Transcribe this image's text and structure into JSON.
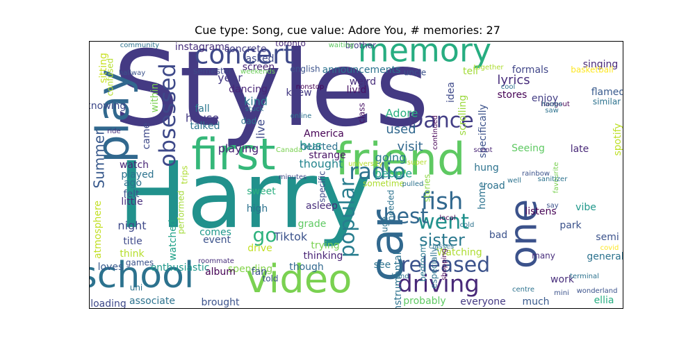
{
  "chart_data": {
    "type": "wordcloud",
    "title": "Cue type: Song, cue value: Adore You, # memories: 27",
    "words": [
      {
        "text": "Styles",
        "color": "#443a83"
      },
      {
        "text": "Harry",
        "color": "#21918c"
      },
      {
        "text": "friend",
        "color": "#5ec962"
      },
      {
        "text": "first",
        "color": "#35b779"
      },
      {
        "text": "video",
        "color": "#7ad151"
      },
      {
        "text": "school",
        "color": "#2c728e"
      },
      {
        "text": "one",
        "color": "#3b528b"
      },
      {
        "text": "car",
        "color": "#31688e"
      },
      {
        "text": "play",
        "color": "#31688e"
      },
      {
        "text": "memory",
        "color": "#27ad81"
      },
      {
        "text": "concert",
        "color": "#3e4989"
      },
      {
        "text": "driving",
        "color": "#482878"
      },
      {
        "text": "released",
        "color": "#3b528b"
      },
      {
        "text": "fish",
        "color": "#31688e"
      },
      {
        "text": "obsessed",
        "color": "#3e4989"
      },
      {
        "text": "radio",
        "color": "#2c728e"
      },
      {
        "text": "Dance",
        "color": "#433e85"
      },
      {
        "text": "went",
        "color": "#21918c"
      },
      {
        "text": "popular",
        "color": "#287d8e"
      },
      {
        "text": "best",
        "color": "#31688e"
      },
      {
        "text": "sister",
        "color": "#2a788e"
      },
      {
        "text": "go",
        "color": "#2db27d"
      },
      {
        "text": "Summer",
        "color": "#38598c"
      },
      {
        "text": "lyrics",
        "color": "#472d7b"
      },
      {
        "text": "Watching",
        "color": "#addc30"
      },
      {
        "text": "Tiktok",
        "color": "#3b528b"
      },
      {
        "text": "night",
        "color": "#3e4989"
      },
      {
        "text": "year",
        "color": "#443983"
      },
      {
        "text": "kind",
        "color": "#2a788e"
      },
      {
        "text": "bus",
        "color": "#1f988b"
      },
      {
        "text": "used",
        "color": "#31688e"
      },
      {
        "text": "visit",
        "color": "#31688e"
      },
      {
        "text": "Adore",
        "color": "#29af7f"
      },
      {
        "text": "thought",
        "color": "#25858e"
      },
      {
        "text": "going",
        "color": "#2a788e"
      },
      {
        "text": "people",
        "color": "#1fa187"
      },
      {
        "text": "playing",
        "color": "#482475"
      },
      {
        "text": "knew",
        "color": "#443a83"
      },
      {
        "text": "specifically",
        "color": "#3b528b"
      },
      {
        "text": "scrolling",
        "color": "#9bd93c"
      },
      {
        "text": "formals",
        "color": "#404688"
      },
      {
        "text": "enjoy",
        "color": "#433e85"
      },
      {
        "text": "flamed",
        "color": "#37598c"
      },
      {
        "text": "spotify",
        "color": "#bddf26"
      },
      {
        "text": "late",
        "color": "#482878"
      },
      {
        "text": "park",
        "color": "#3b528b"
      },
      {
        "text": "semi",
        "color": "#3b528b"
      },
      {
        "text": "general",
        "color": "#2c728e"
      },
      {
        "text": "work",
        "color": "#472d7b"
      },
      {
        "text": "ellia",
        "color": "#27ad81"
      },
      {
        "text": "much",
        "color": "#38598c"
      },
      {
        "text": "everyone",
        "color": "#443983"
      },
      {
        "text": "probably",
        "color": "#5ec962"
      },
      {
        "text": "instrumental",
        "color": "#2c728e"
      },
      {
        "text": "bedroom",
        "color": "#2a788e"
      },
      {
        "text": "especially",
        "color": "#2c728e"
      },
      {
        "text": "shopping",
        "color": "#440154"
      },
      {
        "text": "asleep",
        "color": "#472d7b"
      },
      {
        "text": "grade",
        "color": "#5ec962"
      },
      {
        "text": "trying",
        "color": "#7ad151"
      },
      {
        "text": "thinking",
        "color": "#482475"
      },
      {
        "text": "see",
        "color": "#2c728e"
      },
      {
        "text": "though",
        "color": "#31688e"
      },
      {
        "text": "spending",
        "color": "#84d44b"
      },
      {
        "text": "associate",
        "color": "#2c728e"
      },
      {
        "text": "brought",
        "color": "#3b528b"
      },
      {
        "text": "loading",
        "color": "#3e4989"
      },
      {
        "text": "enthusiastic",
        "color": "#1f988b"
      },
      {
        "text": "loves",
        "color": "#38598c"
      },
      {
        "text": "watched",
        "color": "#1fa187"
      },
      {
        "text": "title",
        "color": "#3e4989"
      },
      {
        "text": "think",
        "color": "#b5de2b"
      },
      {
        "text": "games",
        "color": "#3b528b"
      },
      {
        "text": "uni",
        "color": "#2c728e"
      },
      {
        "text": "atmosphere",
        "color": "#c2df23"
      },
      {
        "text": "watch",
        "color": "#482475"
      },
      {
        "text": "played",
        "color": "#2c728e"
      },
      {
        "text": "ago",
        "color": "#2c728e"
      },
      {
        "text": "felt",
        "color": "#3b528b"
      },
      {
        "text": "little",
        "color": "#472d7b"
      },
      {
        "text": "came",
        "color": "#3e4989"
      },
      {
        "text": "house",
        "color": "#443983"
      },
      {
        "text": "fall",
        "color": "#2a788e"
      },
      {
        "text": "talked",
        "color": "#2c728e"
      },
      {
        "text": "knowing",
        "color": "#3e4989"
      },
      {
        "text": "within",
        "color": "#7ad151"
      },
      {
        "text": "confused",
        "color": "#b5de2b"
      },
      {
        "text": "sitting",
        "color": "#c8e020"
      },
      {
        "text": "instagrams",
        "color": "#472d7b"
      },
      {
        "text": "concrete",
        "color": "#433e85"
      },
      {
        "text": "asked",
        "color": "#3e4989"
      },
      {
        "text": "screen",
        "color": "#482475"
      },
      {
        "text": "dancing",
        "color": "#482475"
      },
      {
        "text": "toronto",
        "color": "#482878"
      },
      {
        "text": "brother",
        "color": "#433e85"
      },
      {
        "text": "english",
        "color": "#3b528b"
      },
      {
        "text": "weird",
        "color": "#472d7b"
      },
      {
        "text": "announcements",
        "color": "#2c728e"
      },
      {
        "text": "livid",
        "color": "#471164"
      },
      {
        "text": "class",
        "color": "#471164"
      },
      {
        "text": "uncle",
        "color": "#3b528b"
      },
      {
        "text": "idea",
        "color": "#3e4989"
      },
      {
        "text": "tell",
        "color": "#a2da37"
      },
      {
        "text": "stores",
        "color": "#440154"
      },
      {
        "text": "singing",
        "color": "#482878"
      },
      {
        "text": "basketball",
        "color": "#fde725"
      },
      {
        "text": "similar",
        "color": "#2c728e"
      },
      {
        "text": "Seeing",
        "color": "#5ec962"
      },
      {
        "text": "hung",
        "color": "#2c728e"
      },
      {
        "text": "road",
        "color": "#2c728e"
      },
      {
        "text": "home",
        "color": "#2c728e"
      },
      {
        "text": "bad",
        "color": "#3b528b"
      },
      {
        "text": "listens",
        "color": "#440154"
      },
      {
        "text": "many",
        "color": "#472d7b"
      },
      {
        "text": "live",
        "color": "#3e4989"
      },
      {
        "text": "strange",
        "color": "#471164"
      },
      {
        "text": "America",
        "color": "#440154"
      },
      {
        "text": "hearted",
        "color": "#2c728e"
      },
      {
        "text": "sweet",
        "color": "#29af7f"
      },
      {
        "text": "high",
        "color": "#2c728e"
      },
      {
        "text": "comes",
        "color": "#1f988b"
      },
      {
        "text": "event",
        "color": "#3b528b"
      },
      {
        "text": "drive",
        "color": "#c2df23"
      },
      {
        "text": "fan",
        "color": "#3b528b"
      },
      {
        "text": "told",
        "color": "#3b528b"
      },
      {
        "text": "album",
        "color": "#440154"
      },
      {
        "text": "performed",
        "color": "#a2da37"
      },
      {
        "text": "trips",
        "color": "#addc30"
      },
      {
        "text": "dad",
        "color": "#2c728e"
      },
      {
        "text": "huge",
        "color": "#2c728e"
      },
      {
        "text": "sometime",
        "color": "#addc30"
      },
      {
        "text": "specific",
        "color": "#3e4989"
      },
      {
        "text": "stories",
        "color": "#8fd744"
      },
      {
        "text": "needed",
        "color": "#2c728e"
      },
      {
        "text": "vibe",
        "color": "#1f988b"
      },
      {
        "text": "wonderland",
        "color": "#3b528b"
      },
      {
        "text": "roommate",
        "color": "#472d7b"
      },
      {
        "text": "Canada",
        "color": "#7ad151"
      },
      {
        "text": "minutes",
        "color": "#3e4989"
      },
      {
        "text": "university",
        "color": "#b5de2b"
      },
      {
        "text": "online",
        "color": "#2c728e"
      },
      {
        "text": "stuck",
        "color": "#2c728e"
      },
      {
        "text": "nonstop",
        "color": "#440154"
      },
      {
        "text": "waiting",
        "color": "#5ec962"
      },
      {
        "text": "weekends",
        "color": "#6ccd5a"
      },
      {
        "text": "semester",
        "color": "#3e4989"
      },
      {
        "text": "hallway",
        "color": "#3b528b"
      },
      {
        "text": "community",
        "color": "#2c728e"
      },
      {
        "text": "ride",
        "color": "#472d7b"
      },
      {
        "text": "cool",
        "color": "#2c728e"
      },
      {
        "text": "hangout",
        "color": "#440154"
      },
      {
        "text": "hoops",
        "color": "#2c728e"
      },
      {
        "text": "saw",
        "color": "#2c728e"
      },
      {
        "text": "together",
        "color": "#addc30"
      },
      {
        "text": "favourite",
        "color": "#7ad151"
      },
      {
        "text": "sanitizer",
        "color": "#2c728e"
      },
      {
        "text": "rainbow",
        "color": "#3b528b"
      },
      {
        "text": "well",
        "color": "#2c728e"
      },
      {
        "text": "scent",
        "color": "#482475"
      },
      {
        "text": "super",
        "color": "#b5de2b"
      },
      {
        "text": "pulled",
        "color": "#2c728e"
      },
      {
        "text": "local",
        "color": "#440154"
      },
      {
        "text": "cold",
        "color": "#2c728e"
      },
      {
        "text": "say",
        "color": "#3b528b"
      },
      {
        "text": "centre",
        "color": "#2c728e"
      },
      {
        "text": "classes",
        "color": "#2c728e"
      },
      {
        "text": "mini",
        "color": "#3b528b"
      },
      {
        "text": "covid",
        "color": "#fde725"
      },
      {
        "text": "terminal",
        "color": "#2c728e"
      },
      {
        "text": "hand",
        "color": "#2c728e"
      },
      {
        "text": "continued",
        "color": "#440154"
      }
    ]
  }
}
